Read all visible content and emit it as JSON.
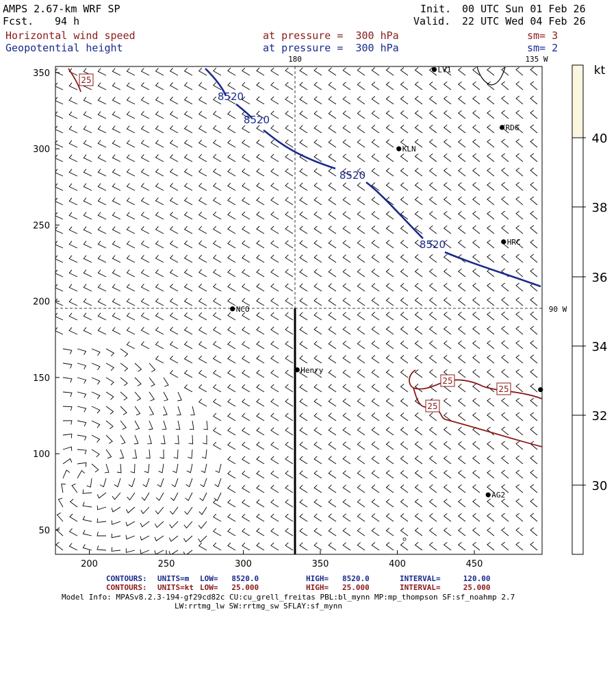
{
  "header": {
    "model_title": "AMPS 2.67-km WRF SP",
    "forecast_label": "Fcst.",
    "forecast_value": "94 h",
    "init_label": "Init.",
    "init_value": "00 UTC Sun 01 Feb 26",
    "valid_label": "Valid.",
    "valid_value": "22 UTC Wed 04 Feb 26",
    "field1_name": "Horizontal wind speed",
    "field1_level": "at pressure =  300 hPa",
    "field1_sm": "sm= 3",
    "field2_name": "Geopotential height",
    "field2_level": "at pressure =  300 hPa",
    "field2_sm": "sm= 2"
  },
  "map": {
    "meridian_label_180": "180",
    "meridian_label_135w": "135 W",
    "meridian_label_90w": "90 W",
    "x_ticks": [
      200,
      250,
      300,
      350,
      400,
      450
    ],
    "y_ticks": [
      50,
      100,
      150,
      200,
      250,
      300,
      350
    ],
    "x_range": [
      178,
      494
    ],
    "y_range": [
      34,
      354
    ],
    "stations": [
      {
        "name": "LV1",
        "x": 424,
        "y": 352
      },
      {
        "name": "RDG",
        "x": 468,
        "y": 314
      },
      {
        "name": "KLN",
        "x": 401,
        "y": 300
      },
      {
        "name": "HRC",
        "x": 469,
        "y": 239
      },
      {
        "name": "NCO",
        "x": 293,
        "y": 195
      },
      {
        "name": "Henry",
        "x": 335,
        "y": 155
      },
      {
        "name": "AG2",
        "x": 459,
        "y": 73
      },
      {
        "name": "",
        "x": 493,
        "y": 142
      }
    ],
    "height_contour_label": "8520",
    "height_contour_labels": [
      "8520",
      "8520",
      "8520",
      "8520"
    ],
    "speed_contour_label": "25",
    "speed_contour_labels": [
      "25",
      "25",
      "25",
      "25"
    ],
    "colors": {
      "height_contour": "#1a2a8c",
      "speed_contour": "#8b1a1a",
      "barbs": "#000000",
      "shade_40": "#fbf6e0"
    }
  },
  "colorbar": {
    "unit": "kt",
    "labels": [
      "40",
      "38",
      "36",
      "34",
      "32",
      "30"
    ]
  },
  "footer": {
    "line1_label": "CONTOURS:",
    "line1_units": "UNITS=m",
    "line1_low": "LOW=   8520.0",
    "line1_high": "HIGH=   8520.0",
    "line1_interval": "INTERVAL=     120.00",
    "line2_label": "CONTOURS:",
    "line2_units": "UNITS=kt",
    "line2_low": "LOW=   25.000",
    "line2_high": "HIGH=   25.000",
    "line2_interval": "INTERVAL=     25.000",
    "model_info_1": "Model Info: MPASv8.2.3-194-gf29cd82c CU:cu_grell_freitas PBL:bl_mynn MP:mp_thompson SF:sf_noahmp 2.7",
    "model_info_2": "LW:rrtmg_lw SW:rrtmg_sw SFLAY:sf_mynn"
  }
}
